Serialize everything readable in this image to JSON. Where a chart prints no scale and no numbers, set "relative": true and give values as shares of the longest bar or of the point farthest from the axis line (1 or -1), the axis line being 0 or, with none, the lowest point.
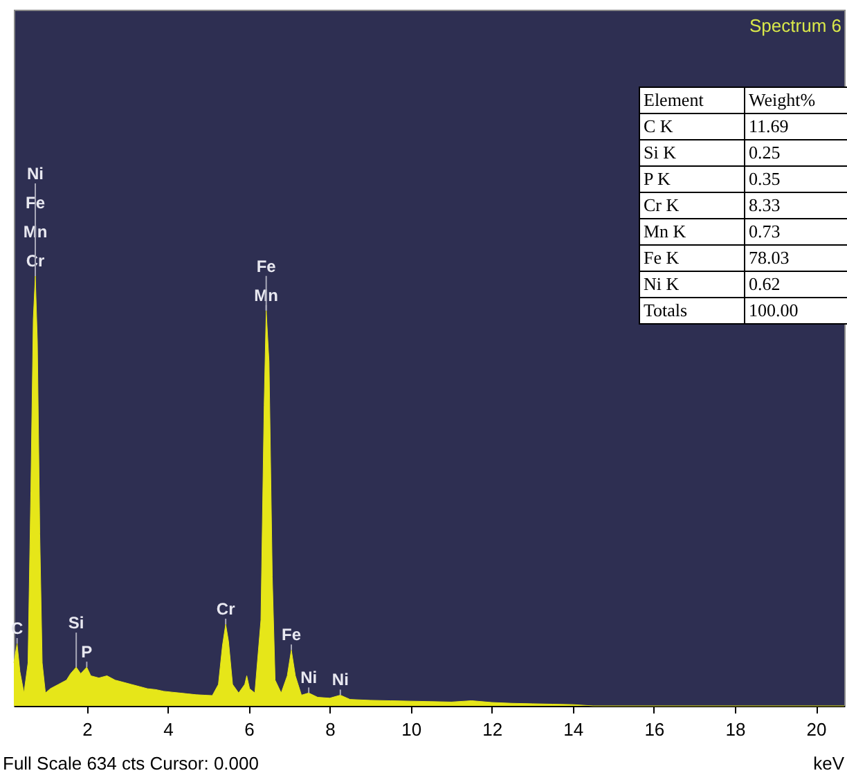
{
  "chart_data": {
    "type": "area",
    "title": "Spectrum 6",
    "xlabel": "keV",
    "relative": true,
    "grid": false,
    "xlim": [
      0.2,
      20.7
    ],
    "xticks": [
      2,
      4,
      6,
      8,
      10,
      12,
      14,
      16,
      18,
      20
    ],
    "series": [
      {
        "color": "#e6e619",
        "x": [
          0.2,
          0.28,
          0.35,
          0.45,
          0.55,
          0.62,
          0.68,
          0.73,
          0.78,
          0.84,
          0.9,
          0.98,
          1.1,
          1.3,
          1.5,
          1.6,
          1.74,
          1.85,
          2.0,
          2.1,
          2.3,
          2.5,
          2.7,
          2.9,
          3.1,
          3.3,
          3.5,
          3.7,
          3.9,
          4.1,
          4.3,
          4.5,
          4.7,
          4.9,
          5.1,
          5.25,
          5.35,
          5.43,
          5.5,
          5.6,
          5.75,
          5.9,
          5.95,
          6.02,
          6.15,
          6.3,
          6.38,
          6.43,
          6.5,
          6.58,
          6.65,
          6.8,
          6.95,
          7.05,
          7.15,
          7.3,
          7.48,
          7.7,
          8.0,
          8.26,
          8.5,
          9.0,
          9.5,
          10.0,
          10.5,
          11.0,
          11.5,
          12.0,
          12.5,
          13.0,
          13.5,
          14.0,
          14.5,
          20.7
        ],
        "values": [
          0.1,
          0.145,
          0.08,
          0.03,
          0.1,
          0.5,
          0.9,
          1.0,
          0.85,
          0.4,
          0.1,
          0.03,
          0.04,
          0.05,
          0.06,
          0.075,
          0.09,
          0.075,
          0.09,
          0.07,
          0.065,
          0.07,
          0.06,
          0.055,
          0.05,
          0.045,
          0.04,
          0.038,
          0.034,
          0.032,
          0.03,
          0.028,
          0.026,
          0.025,
          0.024,
          0.05,
          0.14,
          0.19,
          0.15,
          0.05,
          0.03,
          0.05,
          0.07,
          0.04,
          0.03,
          0.2,
          0.7,
          0.92,
          0.8,
          0.3,
          0.06,
          0.03,
          0.07,
          0.13,
          0.07,
          0.025,
          0.03,
          0.02,
          0.018,
          0.025,
          0.015,
          0.013,
          0.012,
          0.011,
          0.01,
          0.009,
          0.012,
          0.008,
          0.006,
          0.005,
          0.004,
          0.003,
          0,
          0
        ]
      }
    ],
    "annotations": [
      {
        "text": "Ni",
        "x": 0.73,
        "y": 1.0
      },
      {
        "text": "Fe",
        "x": 0.73,
        "y": 1.0
      },
      {
        "text": "Mn",
        "x": 0.73,
        "y": 1.0
      },
      {
        "text": "Cr",
        "x": 0.73,
        "y": 1.0
      },
      {
        "text": "Fe",
        "x": 6.43,
        "y": 0.92
      },
      {
        "text": "Mn",
        "x": 6.43,
        "y": 0.92
      },
      {
        "text": "C",
        "x": 0.28,
        "y": 0.145
      },
      {
        "text": "Si",
        "x": 1.74,
        "y": 0.09
      },
      {
        "text": "P",
        "x": 2.0,
        "y": 0.09
      },
      {
        "text": "Cr",
        "x": 5.43,
        "y": 0.19
      },
      {
        "text": "Fe",
        "x": 7.05,
        "y": 0.13
      },
      {
        "text": "Ni",
        "x": 7.48,
        "y": 0.03
      },
      {
        "text": "Ni",
        "x": 8.26,
        "y": 0.025
      },
      "Element",
      "Weight%",
      "C K",
      "11.69",
      "Si K",
      "0.25",
      "P K",
      "0.35",
      "Cr K",
      "8.33",
      "Mn K",
      "0.73",
      "Fe K",
      "78.03",
      "Ni K",
      "0.62",
      "Totals",
      "100.00",
      "Full Scale 634 cts Cursor: 0.000"
    ]
  }
}
